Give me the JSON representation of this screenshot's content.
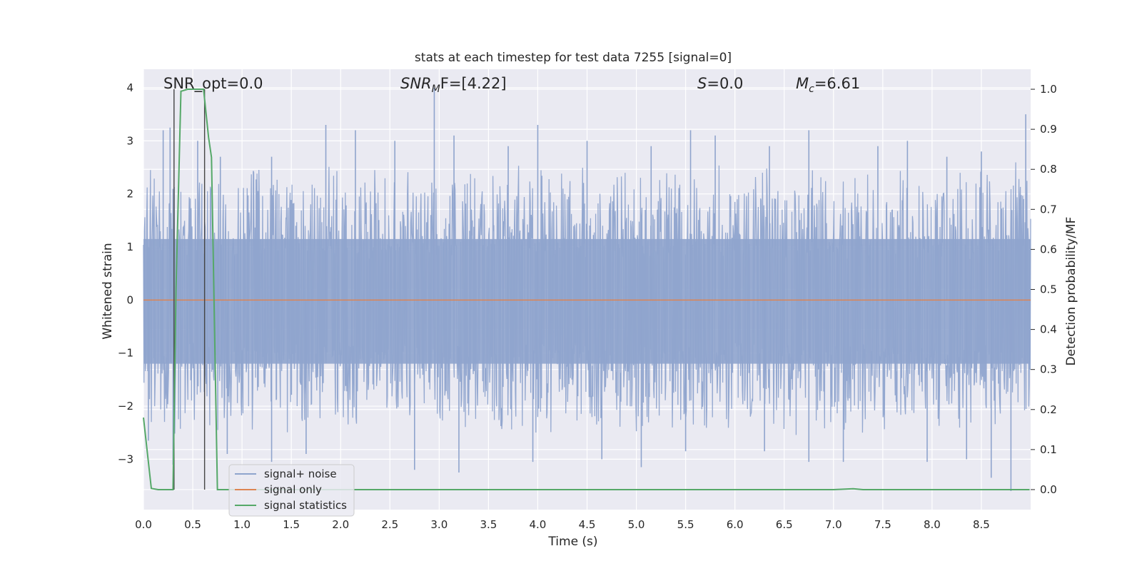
{
  "chart_data": {
    "type": "line",
    "title": "stats at each timestep for test data 7255 [signal=0]",
    "xlabel": "Time (s)",
    "ylabel_left": "Whitened strain",
    "ylabel_right": "Detection probability/MF",
    "xlim": [
      0.0,
      9.0
    ],
    "ylim_left": [
      -3.95,
      4.35
    ],
    "ylim_right": [
      -0.05,
      1.05
    ],
    "x_ticks": [
      "0.0",
      "0.5",
      "1.0",
      "1.5",
      "2.0",
      "2.5",
      "3.0",
      "3.5",
      "4.0",
      "4.5",
      "5.0",
      "5.5",
      "6.0",
      "6.5",
      "7.0",
      "7.5",
      "8.0",
      "8.5"
    ],
    "x_tick_values": [
      0.0,
      0.5,
      1.0,
      1.5,
      2.0,
      2.5,
      3.0,
      3.5,
      4.0,
      4.5,
      5.0,
      5.5,
      6.0,
      6.5,
      7.0,
      7.5,
      8.0,
      8.5
    ],
    "y_left_ticks": [
      "4",
      "3",
      "2",
      "1",
      "0",
      "−1",
      "−2",
      "−3"
    ],
    "y_left_tick_values": [
      4,
      3,
      2,
      1,
      0,
      -1,
      -2,
      -3
    ],
    "y_right_ticks": [
      "1.0",
      "0.9",
      "0.8",
      "0.7",
      "0.6",
      "0.5",
      "0.4",
      "0.3",
      "0.2",
      "0.1",
      "0.0"
    ],
    "y_right_tick_values": [
      1.0,
      0.9,
      0.8,
      0.7,
      0.6,
      0.5,
      0.4,
      0.3,
      0.2,
      0.1,
      0.0
    ],
    "grid": true,
    "legend_position": "bottom-left",
    "annotations": {
      "snr_opt": "SNR_opt=0.0",
      "snr_mf_prefix": "SNR",
      "snr_mf_sub": "M",
      "snr_mf_suffix": "F=[4.22]",
      "s_prefix": "S",
      "s_suffix": "=0.0",
      "mc_prefix": "M",
      "mc_sub": "c",
      "mc_suffix": "=6.61"
    },
    "vertical_markers_x": [
      0.31,
      0.62
    ],
    "series": [
      {
        "name": "signal+ noise",
        "color": "#8fa4cd",
        "description": "whitened strain noise, roughly symmetric about 0 with amplitude ~±2.3 and spikes up to ~4",
        "envelope_peaks": [
          [
            0.2,
            3.2
          ],
          [
            0.27,
            3.25
          ],
          [
            0.55,
            3.0
          ],
          [
            0.78,
            2.7
          ],
          [
            1.3,
            2.7
          ],
          [
            1.85,
            3.3
          ],
          [
            2.15,
            3.2
          ],
          [
            2.55,
            3.0
          ],
          [
            2.95,
            4.0
          ],
          [
            3.15,
            3.1
          ],
          [
            3.7,
            2.9
          ],
          [
            4.0,
            3.3
          ],
          [
            4.5,
            3.0
          ],
          [
            5.15,
            2.9
          ],
          [
            5.55,
            3.2
          ],
          [
            5.8,
            3.1
          ],
          [
            6.35,
            2.9
          ],
          [
            6.75,
            3.2
          ],
          [
            7.45,
            2.9
          ],
          [
            7.75,
            3.0
          ],
          [
            8.15,
            2.7
          ],
          [
            8.5,
            2.8
          ],
          [
            8.95,
            3.5
          ]
        ],
        "envelope_troughs": [
          [
            0.05,
            -2.65
          ],
          [
            0.3,
            -3.1
          ],
          [
            0.85,
            -2.9
          ],
          [
            1.3,
            -3.05
          ],
          [
            1.65,
            -2.9
          ],
          [
            2.75,
            -3.2
          ],
          [
            3.2,
            -3.25
          ],
          [
            3.95,
            -3.05
          ],
          [
            4.65,
            -3.0
          ],
          [
            5.05,
            -3.15
          ],
          [
            5.5,
            -2.85
          ],
          [
            6.3,
            -2.85
          ],
          [
            6.75,
            -3.05
          ],
          [
            7.1,
            -3.05
          ],
          [
            7.95,
            -3.05
          ],
          [
            8.35,
            -3.0
          ],
          [
            8.6,
            -3.35
          ],
          [
            8.8,
            -3.6
          ]
        ]
      },
      {
        "name": "signal only",
        "color": "#dd8452",
        "values_const": 0.0
      },
      {
        "name": "signal statistics",
        "color": "#55a868",
        "axis": "right",
        "x": [
          0.0,
          0.08,
          0.15,
          0.3,
          0.33,
          0.38,
          0.45,
          0.55,
          0.61,
          0.66,
          0.69,
          0.75,
          0.8,
          1.5,
          3.0,
          4.5,
          6.0,
          7.0,
          7.2,
          7.3,
          8.0,
          8.99
        ],
        "y": [
          0.18,
          0.003,
          0.0,
          0.0,
          0.5,
          0.995,
          1.0,
          1.0,
          1.0,
          0.88,
          0.83,
          0.0,
          0.0,
          0.0,
          0.0,
          0.0,
          0.0,
          0.0,
          0.002,
          0.0,
          0.0,
          0.0
        ]
      }
    ]
  }
}
